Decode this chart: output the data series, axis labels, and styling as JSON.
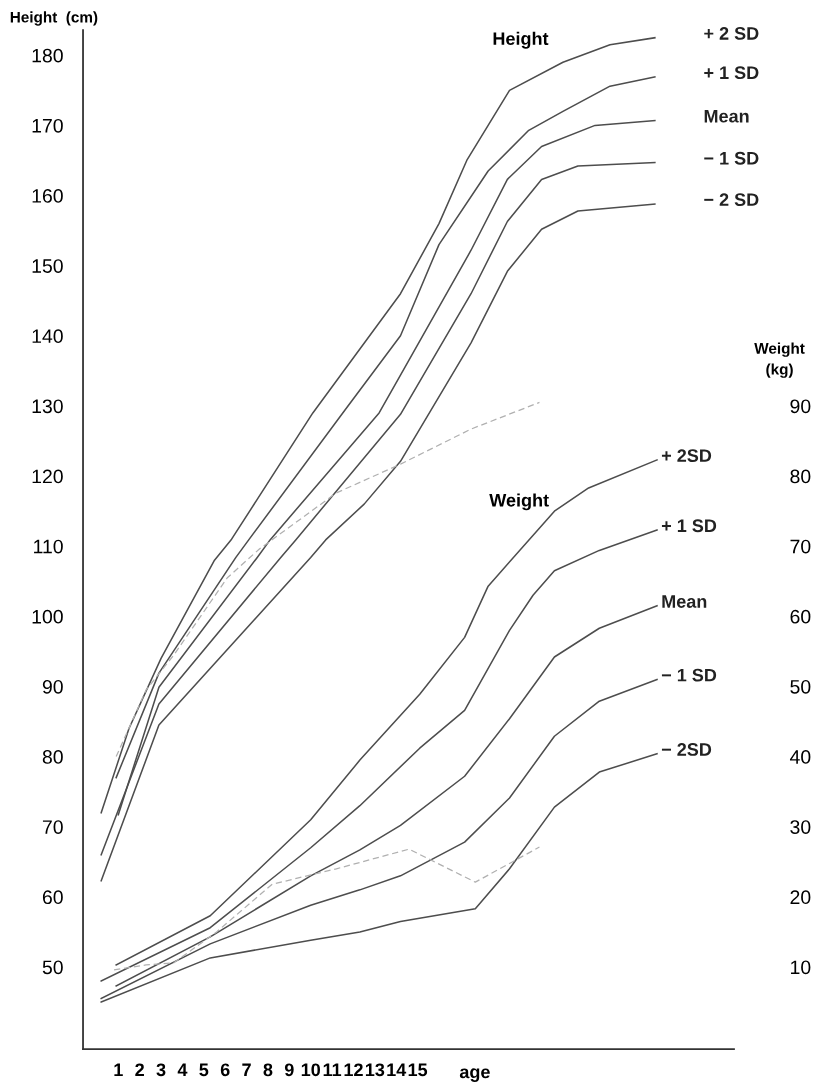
{
  "chart_data": {
    "type": "line",
    "ylabel": "Height  (cm)",
    "y2label": "Weight\n(kg)",
    "xlabel": "age",
    "annotations": [
      "Height",
      "Weight"
    ],
    "xlim": [
      -0.65,
      29.8
    ],
    "xticks": [
      1,
      2,
      3,
      4,
      5,
      6,
      7,
      8,
      9,
      10,
      11,
      12,
      13,
      14,
      15
    ],
    "ylim": [
      38.3,
      183.6
    ],
    "yticks": [
      50,
      60,
      70,
      80,
      90,
      100,
      110,
      120,
      130,
      140,
      150,
      160,
      170,
      180
    ],
    "y2lim": [
      -1.7,
      143.6
    ],
    "y2ticks": [
      10,
      20,
      30,
      40,
      50,
      60,
      70,
      80,
      90
    ],
    "grid": false,
    "marker": "none",
    "line_style": "solid",
    "series": [
      {
        "name": "+ 2 SD",
        "color": "#4d4d4d",
        "x": [
          0.2,
          1.5,
          3.0,
          5.5,
          6.3,
          10.1,
          14.2,
          16.0,
          17.3,
          18.3,
          19.3,
          21.8,
          24.0,
          26.1
        ],
        "values": [
          72,
          84,
          94,
          108,
          111,
          129,
          146,
          156,
          165,
          170,
          175,
          179,
          181.5,
          182.5
        ]
      },
      {
        "name": "+ 1 SD",
        "color": "#4d4d4d",
        "x": [
          0.9,
          2.9,
          6.5,
          7.1,
          11.5,
          14.2,
          16.0,
          18.3,
          20.2,
          21.8,
          24.0,
          26.1
        ],
        "values": [
          77,
          91.9,
          108.4,
          110.9,
          129,
          140,
          153,
          163.5,
          169.3,
          172,
          175.6,
          176.9
        ]
      },
      {
        "name": "Mean",
        "color": "#4d4d4d",
        "x": [
          1.0,
          2.9,
          7.5,
          8.1,
          13.2,
          14.2,
          17.5,
          19.2,
          20.8,
          23.3,
          26.1
        ],
        "values": [
          71.7,
          89.9,
          108.4,
          110.9,
          129,
          134.4,
          152.2,
          162.3,
          167,
          170,
          170.7
        ]
      },
      {
        "name": "− 1 SD",
        "color": "#4d4d4d",
        "x": [
          0.2,
          2.9,
          8.6,
          9.3,
          14.2,
          17.5,
          19.2,
          20.8,
          22.5,
          26.1
        ],
        "values": [
          66,
          87.5,
          108.4,
          110.9,
          128.8,
          146,
          156.3,
          162.3,
          164.2,
          164.7
        ]
      },
      {
        "name": "− 2 SD",
        "color": "#4d4d4d",
        "x": [
          0.2,
          2.9,
          10.0,
          10.7,
          12.5,
          14.2,
          17.5,
          19.2,
          20.8,
          22.5,
          26.1
        ],
        "values": [
          62.3,
          84.5,
          108.4,
          110.9,
          116,
          122.1,
          139,
          149.2,
          155.2,
          157.8,
          158.8
        ]
      },
      {
        "color": "#b0b0b0",
        "line_style": "dashed",
        "x": [
          0.9,
          2.3,
          3.6,
          6.1,
          7.6,
          11.2,
          14.2,
          17.5,
          20.7
        ],
        "values": [
          80,
          89.5,
          94.5,
          105.5,
          109.6,
          117.6,
          121.7,
          126.7,
          130.5
        ]
      },
      {
        "name": "+ 2SD",
        "axis": "y2",
        "color": "#4d4d4d",
        "x": [
          0.9,
          5.3,
          10.0,
          12.3,
          15.1,
          17.2,
          18.3,
          21.4,
          23.0,
          26.2
        ],
        "values": [
          10.3,
          17.3,
          31,
          39.5,
          48.9,
          57,
          64.3,
          75,
          78.3,
          82.3
        ]
      },
      {
        "name": "+ 1 SD",
        "axis": "y2",
        "color": "#4d4d4d",
        "x": [
          0.2,
          5.3,
          10.0,
          12.3,
          15.1,
          17.2,
          19.3,
          20.4,
          21.4,
          23.5,
          26.2
        ],
        "values": [
          8,
          15.6,
          27,
          33,
          41.2,
          46.6,
          58,
          63,
          66.5,
          69.4,
          72.3
        ]
      },
      {
        "name": "Mean",
        "axis": "y2",
        "color": "#4d4d4d",
        "x": [
          0.9,
          5.3,
          10.0,
          12.3,
          14.2,
          17.2,
          19.3,
          21.4,
          23.5,
          26.2
        ],
        "values": [
          7.3,
          14.3,
          23,
          26.7,
          30.2,
          37.2,
          45.4,
          54.2,
          58.3,
          61.5
        ]
      },
      {
        "name": "− 1 SD",
        "axis": "y2",
        "color": "#4d4d4d",
        "x": [
          0.2,
          5.3,
          10.0,
          12.3,
          14.2,
          17.2,
          19.3,
          21.4,
          23.5,
          26.2
        ],
        "values": [
          5.5,
          13.3,
          18.8,
          21,
          23,
          27.8,
          34.1,
          42.9,
          47.9,
          51
        ]
      },
      {
        "name": "− 2SD",
        "axis": "y2",
        "color": "#4d4d4d",
        "x": [
          0.2,
          5.3,
          10.0,
          12.3,
          14.2,
          17.7,
          19.3,
          21.4,
          23.5,
          26.2
        ],
        "values": [
          5,
          11.3,
          13.8,
          15,
          16.5,
          18.3,
          24,
          32.8,
          37.8,
          40.4
        ]
      },
      {
        "axis": "y2",
        "color": "#b0b0b0",
        "line_style": "dashed",
        "x": [
          0.8,
          2.3,
          3.6,
          5.6,
          8.2,
          11.2,
          14.6,
          17.7,
          20.7
        ],
        "values": [
          9.6,
          10.3,
          10.6,
          15,
          21.8,
          24,
          26.8,
          22.1,
          27.1
        ]
      }
    ]
  }
}
